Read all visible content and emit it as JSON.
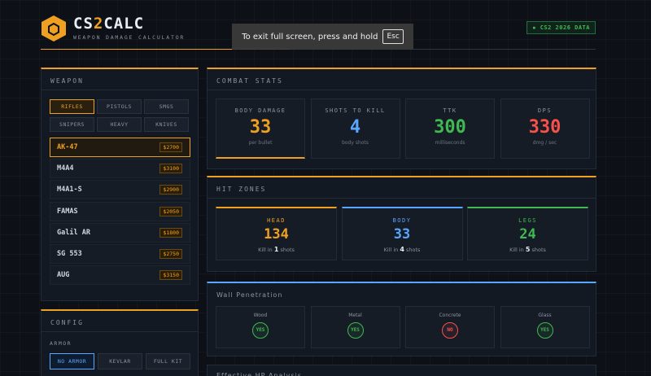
{
  "header": {
    "title_a": "CS",
    "title_b": "2",
    "title_c": "CALC",
    "subtitle": "WEAPON DAMAGE CALCULATOR",
    "data_badge": "CS2 2026 DATA"
  },
  "overlay": {
    "text": "To exit full screen, press and hold",
    "key": "Esc"
  },
  "weapon_panel": {
    "title": "WEAPON",
    "categories": [
      "RIFLES",
      "PISTOLS",
      "SMGS",
      "SNIPERS",
      "HEAVY",
      "KNIVES"
    ],
    "active_category": "RIFLES",
    "weapons": [
      {
        "name": "AK-47",
        "price": "$2700"
      },
      {
        "name": "M4A4",
        "price": "$3100"
      },
      {
        "name": "M4A1-S",
        "price": "$2900"
      },
      {
        "name": "FAMAS",
        "price": "$2050"
      },
      {
        "name": "Galil AR",
        "price": "$1800"
      },
      {
        "name": "SG 553",
        "price": "$2750"
      },
      {
        "name": "AUG",
        "price": "$3150"
      }
    ],
    "active_weapon": "AK-47"
  },
  "config": {
    "title": "CONFIG",
    "armor_label": "ARMOR",
    "armor_options": [
      "NO ARMOR",
      "KEVLAR",
      "FULL KIT"
    ],
    "active_armor": "NO ARMOR"
  },
  "combat_stats": {
    "title": "COMBAT STATS",
    "cards": [
      {
        "label": "BODY DAMAGE",
        "value": "33",
        "sub": "per bullet",
        "color": "#f0a020"
      },
      {
        "label": "SHOTS TO KILL",
        "value": "4",
        "sub": "body shots",
        "color": "#58a6ff"
      },
      {
        "label": "TTK",
        "value": "300",
        "sub": "milliseconds",
        "color": "#3fb950"
      },
      {
        "label": "DPS",
        "value": "330",
        "sub": "dmg / sec",
        "color": "#f85149"
      }
    ]
  },
  "hit_zones": {
    "title": "HIT ZONES",
    "zones": [
      {
        "label": "HEAD",
        "value": "134",
        "kill_prefix": "Kill in",
        "shots": "1",
        "kill_suffix": "shots",
        "color": "#f0a020"
      },
      {
        "label": "BODY",
        "value": "33",
        "kill_prefix": "Kill in",
        "shots": "4",
        "kill_suffix": "shots",
        "color": "#58a6ff"
      },
      {
        "label": "LEGS",
        "value": "24",
        "kill_prefix": "Kill in",
        "shots": "5",
        "kill_suffix": "shots",
        "color": "#3fb950"
      }
    ]
  },
  "wall_penetration": {
    "title": "Wall Penetration",
    "materials": [
      {
        "label": "Wood",
        "result": "YES"
      },
      {
        "label": "Metal",
        "result": "YES"
      },
      {
        "label": "Concrete",
        "result": "NO"
      },
      {
        "label": "Glass",
        "result": "YES"
      }
    ]
  },
  "effective_hp": {
    "title": "Effective HP Analysis"
  }
}
